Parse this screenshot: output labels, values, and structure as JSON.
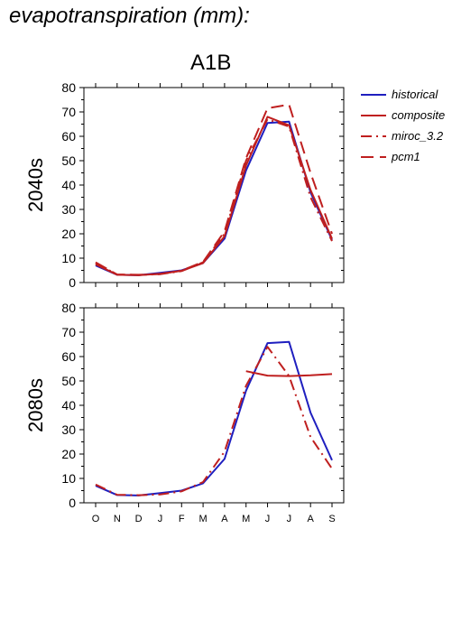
{
  "page_title": "evapotranspiration (mm):",
  "scenario": "A1B",
  "legend": [
    {
      "label": "historical",
      "color": "#1f1fbf",
      "dash": "solid"
    },
    {
      "label": "composite",
      "color": "#bf1f1f",
      "dash": "solid"
    },
    {
      "label": "miroc_3.2",
      "color": "#bf1f1f",
      "dash": "dashdot"
    },
    {
      "label": "pcm1",
      "color": "#bf1f1f",
      "dash": "dashed"
    }
  ],
  "chart_data": [
    {
      "type": "line",
      "panel_label": "2040s",
      "categories": [
        "O",
        "N",
        "D",
        "J",
        "F",
        "M",
        "A",
        "M",
        "J",
        "J",
        "A",
        "S"
      ],
      "ylim": [
        0,
        80
      ],
      "yticks": [
        0,
        10,
        20,
        30,
        40,
        50,
        60,
        70,
        80
      ],
      "grid": false,
      "legend_position": "right",
      "series": [
        {
          "name": "historical",
          "values": [
            7,
            3.2,
            3,
            4,
            5,
            8,
            18,
            46,
            65.5,
            66,
            37,
            17.5
          ]
        },
        {
          "name": "composite",
          "values": [
            7.5,
            3.2,
            3,
            3.6,
            4.8,
            8,
            19,
            48,
            68,
            64.5,
            38,
            18
          ]
        },
        {
          "name": "miroc_3.2",
          "values": [
            8,
            3.3,
            3.1,
            3.4,
            4.7,
            8.3,
            20,
            50,
            67,
            64,
            35,
            17
          ]
        },
        {
          "name": "pcm1",
          "values": [
            8.3,
            3.3,
            3.2,
            3.5,
            4.9,
            8.5,
            21,
            51,
            71.5,
            73,
            45,
            20
          ]
        }
      ]
    },
    {
      "type": "line",
      "panel_label": "2080s",
      "categories": [
        "O",
        "N",
        "D",
        "J",
        "F",
        "M",
        "A",
        "M",
        "J",
        "J",
        "A",
        "S"
      ],
      "ylim": [
        0,
        80
      ],
      "yticks": [
        0,
        10,
        20,
        30,
        40,
        50,
        60,
        70,
        80
      ],
      "grid": false,
      "series": [
        {
          "name": "historical",
          "values": [
            7,
            3.2,
            3,
            4,
            5,
            8,
            18,
            46,
            65.5,
            66,
            37,
            17.5
          ]
        },
        {
          "name": "composite",
          "values": [
            null,
            null,
            null,
            null,
            null,
            null,
            null,
            54,
            52.2,
            52,
            52.3,
            52.8
          ]
        },
        {
          "name": "miroc_3.2",
          "values": [
            7.5,
            3.3,
            3.1,
            3.4,
            4.7,
            8.5,
            21,
            48,
            64,
            52,
            27,
            14
          ]
        }
      ]
    }
  ]
}
